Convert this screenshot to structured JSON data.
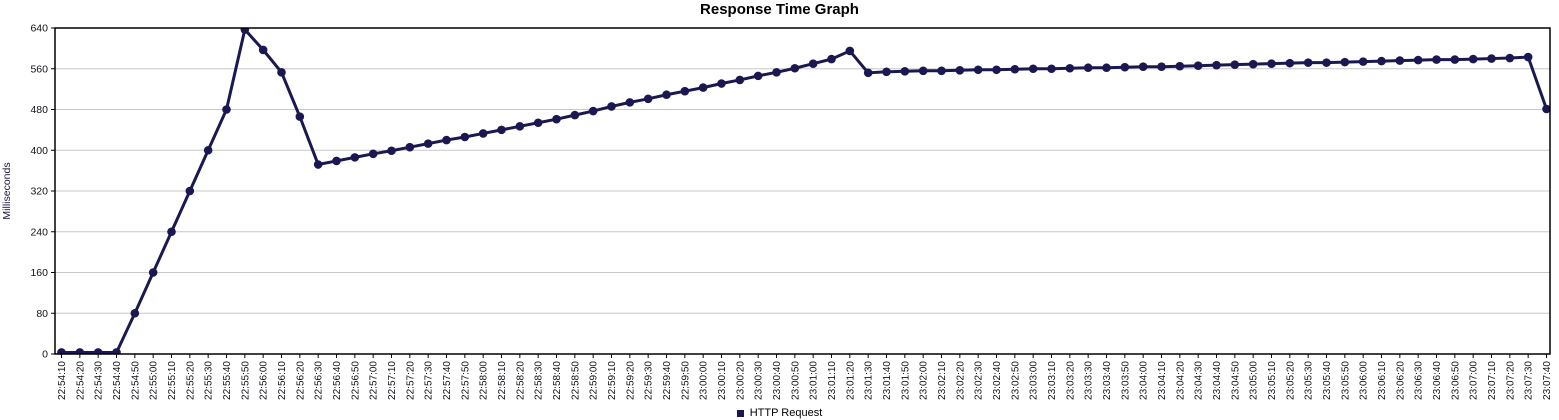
{
  "chart_data": {
    "type": "line",
    "title": "Response Time Graph",
    "ylabel": "Milliseconds",
    "xlabel": "",
    "ylim": [
      0,
      640
    ],
    "yticks": [
      0,
      80,
      160,
      240,
      320,
      400,
      480,
      560,
      640
    ],
    "grid": "horizontal",
    "legend_position": "bottom-center",
    "x": [
      "22:54:10",
      "22:54:20",
      "22:54:30",
      "22:54:40",
      "22:54:50",
      "22:55:00",
      "22:55:10",
      "22:55:20",
      "22:55:30",
      "22:55:40",
      "22:55:50",
      "22:56:00",
      "22:56:10",
      "22:56:20",
      "22:56:30",
      "22:56:40",
      "22:56:50",
      "22:57:00",
      "22:57:10",
      "22:57:20",
      "22:57:30",
      "22:57:40",
      "22:57:50",
      "22:58:00",
      "22:58:10",
      "22:58:20",
      "22:58:30",
      "22:58:40",
      "22:58:50",
      "22:59:00",
      "22:59:10",
      "22:59:20",
      "22:59:30",
      "22:59:40",
      "22:59:50",
      "23:00:00",
      "23:00:10",
      "23:00:20",
      "23:00:30",
      "23:00:40",
      "23:00:50",
      "23:01:00",
      "23:01:10",
      "23:01:20",
      "23:01:30",
      "23:01:40",
      "23:01:50",
      "23:02:00",
      "23:02:10",
      "23:02:20",
      "23:02:30",
      "23:02:40",
      "23:02:50",
      "23:03:00",
      "23:03:10",
      "23:03:20",
      "23:03:30",
      "23:03:40",
      "23:03:50",
      "23:04:00",
      "23:04:10",
      "23:04:20",
      "23:04:30",
      "23:04:40",
      "23:04:50",
      "23:05:00",
      "23:05:10",
      "23:05:20",
      "23:05:30",
      "23:05:40",
      "23:05:50",
      "23:06:00",
      "23:06:10",
      "23:06:20",
      "23:06:30",
      "23:06:40",
      "23:06:50",
      "23:07:00",
      "23:07:10",
      "23:07:20",
      "23:07:30",
      "23:07:40"
    ],
    "series": [
      {
        "name": "HTTP Request",
        "color": "#1a1850",
        "values": [
          3,
          3,
          3,
          3,
          80,
          160,
          240,
          320,
          400,
          480,
          637,
          597,
          553,
          466,
          372,
          379,
          386,
          393,
          399,
          406,
          413,
          420,
          426,
          433,
          440,
          447,
          454,
          461,
          469,
          477,
          486,
          494,
          501,
          509,
          516,
          523,
          531,
          538,
          546,
          553,
          561,
          570,
          579,
          595,
          552,
          554,
          555,
          556,
          556,
          557,
          558,
          558,
          559,
          560,
          560,
          561,
          562,
          562,
          563,
          564,
          564,
          565,
          566,
          567,
          568,
          569,
          570,
          571,
          572,
          572,
          573,
          574,
          575,
          576,
          577,
          578,
          578,
          579,
          580,
          581,
          583,
          481
        ]
      }
    ],
    "colors": {
      "series": "#1a1850",
      "gridline": "#c8c8c8",
      "axis": "#000000",
      "tick_label": "#111118",
      "background": "#ffffff"
    }
  }
}
